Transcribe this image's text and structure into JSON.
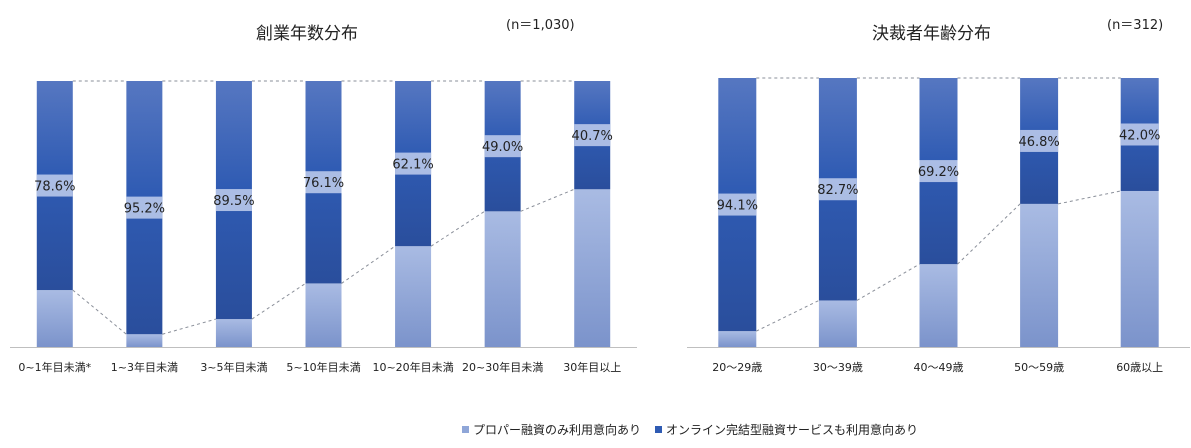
{
  "legend": [
    {
      "label": "プロパー融資のみ利用意向あり",
      "color": "#8fa6d8"
    },
    {
      "label": "オンライン完結型融資サービスも利用意向あり",
      "color": "#2f5bb3"
    }
  ],
  "colors": {
    "proper_light": "#a9bbe3",
    "proper_dark": "#7b93cb",
    "online_top": "#5677c1",
    "online_mid": "#2f5bb3",
    "online_bottom": "#2a4e9c",
    "label_band": "#b9c8ea",
    "dashed": "#8a8f99",
    "axis": "#bfbfbf"
  },
  "chart_data": [
    {
      "type": "bar",
      "stacked": true,
      "title": "創業年数分布",
      "n_label": "(n＝1,030)",
      "categories": [
        "0~1年目未満*",
        "1~3年目未満",
        "3~5年目未満",
        "5~10年目未満",
        "10~20年目未満",
        "20~30年目未満",
        "30年目以上"
      ],
      "series": [
        {
          "name": "プロパー融資のみ利用意向あり",
          "values": [
            21.4,
            4.8,
            10.5,
            23.9,
            37.9,
            51.0,
            59.3
          ]
        },
        {
          "name": "オンライン完結型融資サービスも利用意向あり",
          "values": [
            78.6,
            95.2,
            89.5,
            76.1,
            62.1,
            49.0,
            40.7
          ]
        }
      ],
      "data_labels": [
        "78.6%",
        "95.2%",
        "89.5%",
        "76.1%",
        "62.1%",
        "49.0%",
        "40.7%"
      ],
      "ylim": [
        0,
        100
      ],
      "grid": false
    },
    {
      "type": "bar",
      "stacked": true,
      "title": "決裁者年齢分布",
      "n_label": "(n＝312)",
      "categories": [
        "20～29歳",
        "30～39歳",
        "40～49歳",
        "50～59歳",
        "60歳以上"
      ],
      "series": [
        {
          "name": "プロパー融資のみ利用意向あり",
          "values": [
            5.9,
            17.3,
            30.8,
            53.2,
            58.0
          ]
        },
        {
          "name": "オンライン完結型融資サービスも利用意向あり",
          "values": [
            94.1,
            82.7,
            69.2,
            46.8,
            42.0
          ]
        }
      ],
      "data_labels": [
        "94.1%",
        "82.7%",
        "69.2%",
        "46.8%",
        "42.0%"
      ],
      "ylim": [
        0,
        100
      ],
      "grid": false
    }
  ]
}
